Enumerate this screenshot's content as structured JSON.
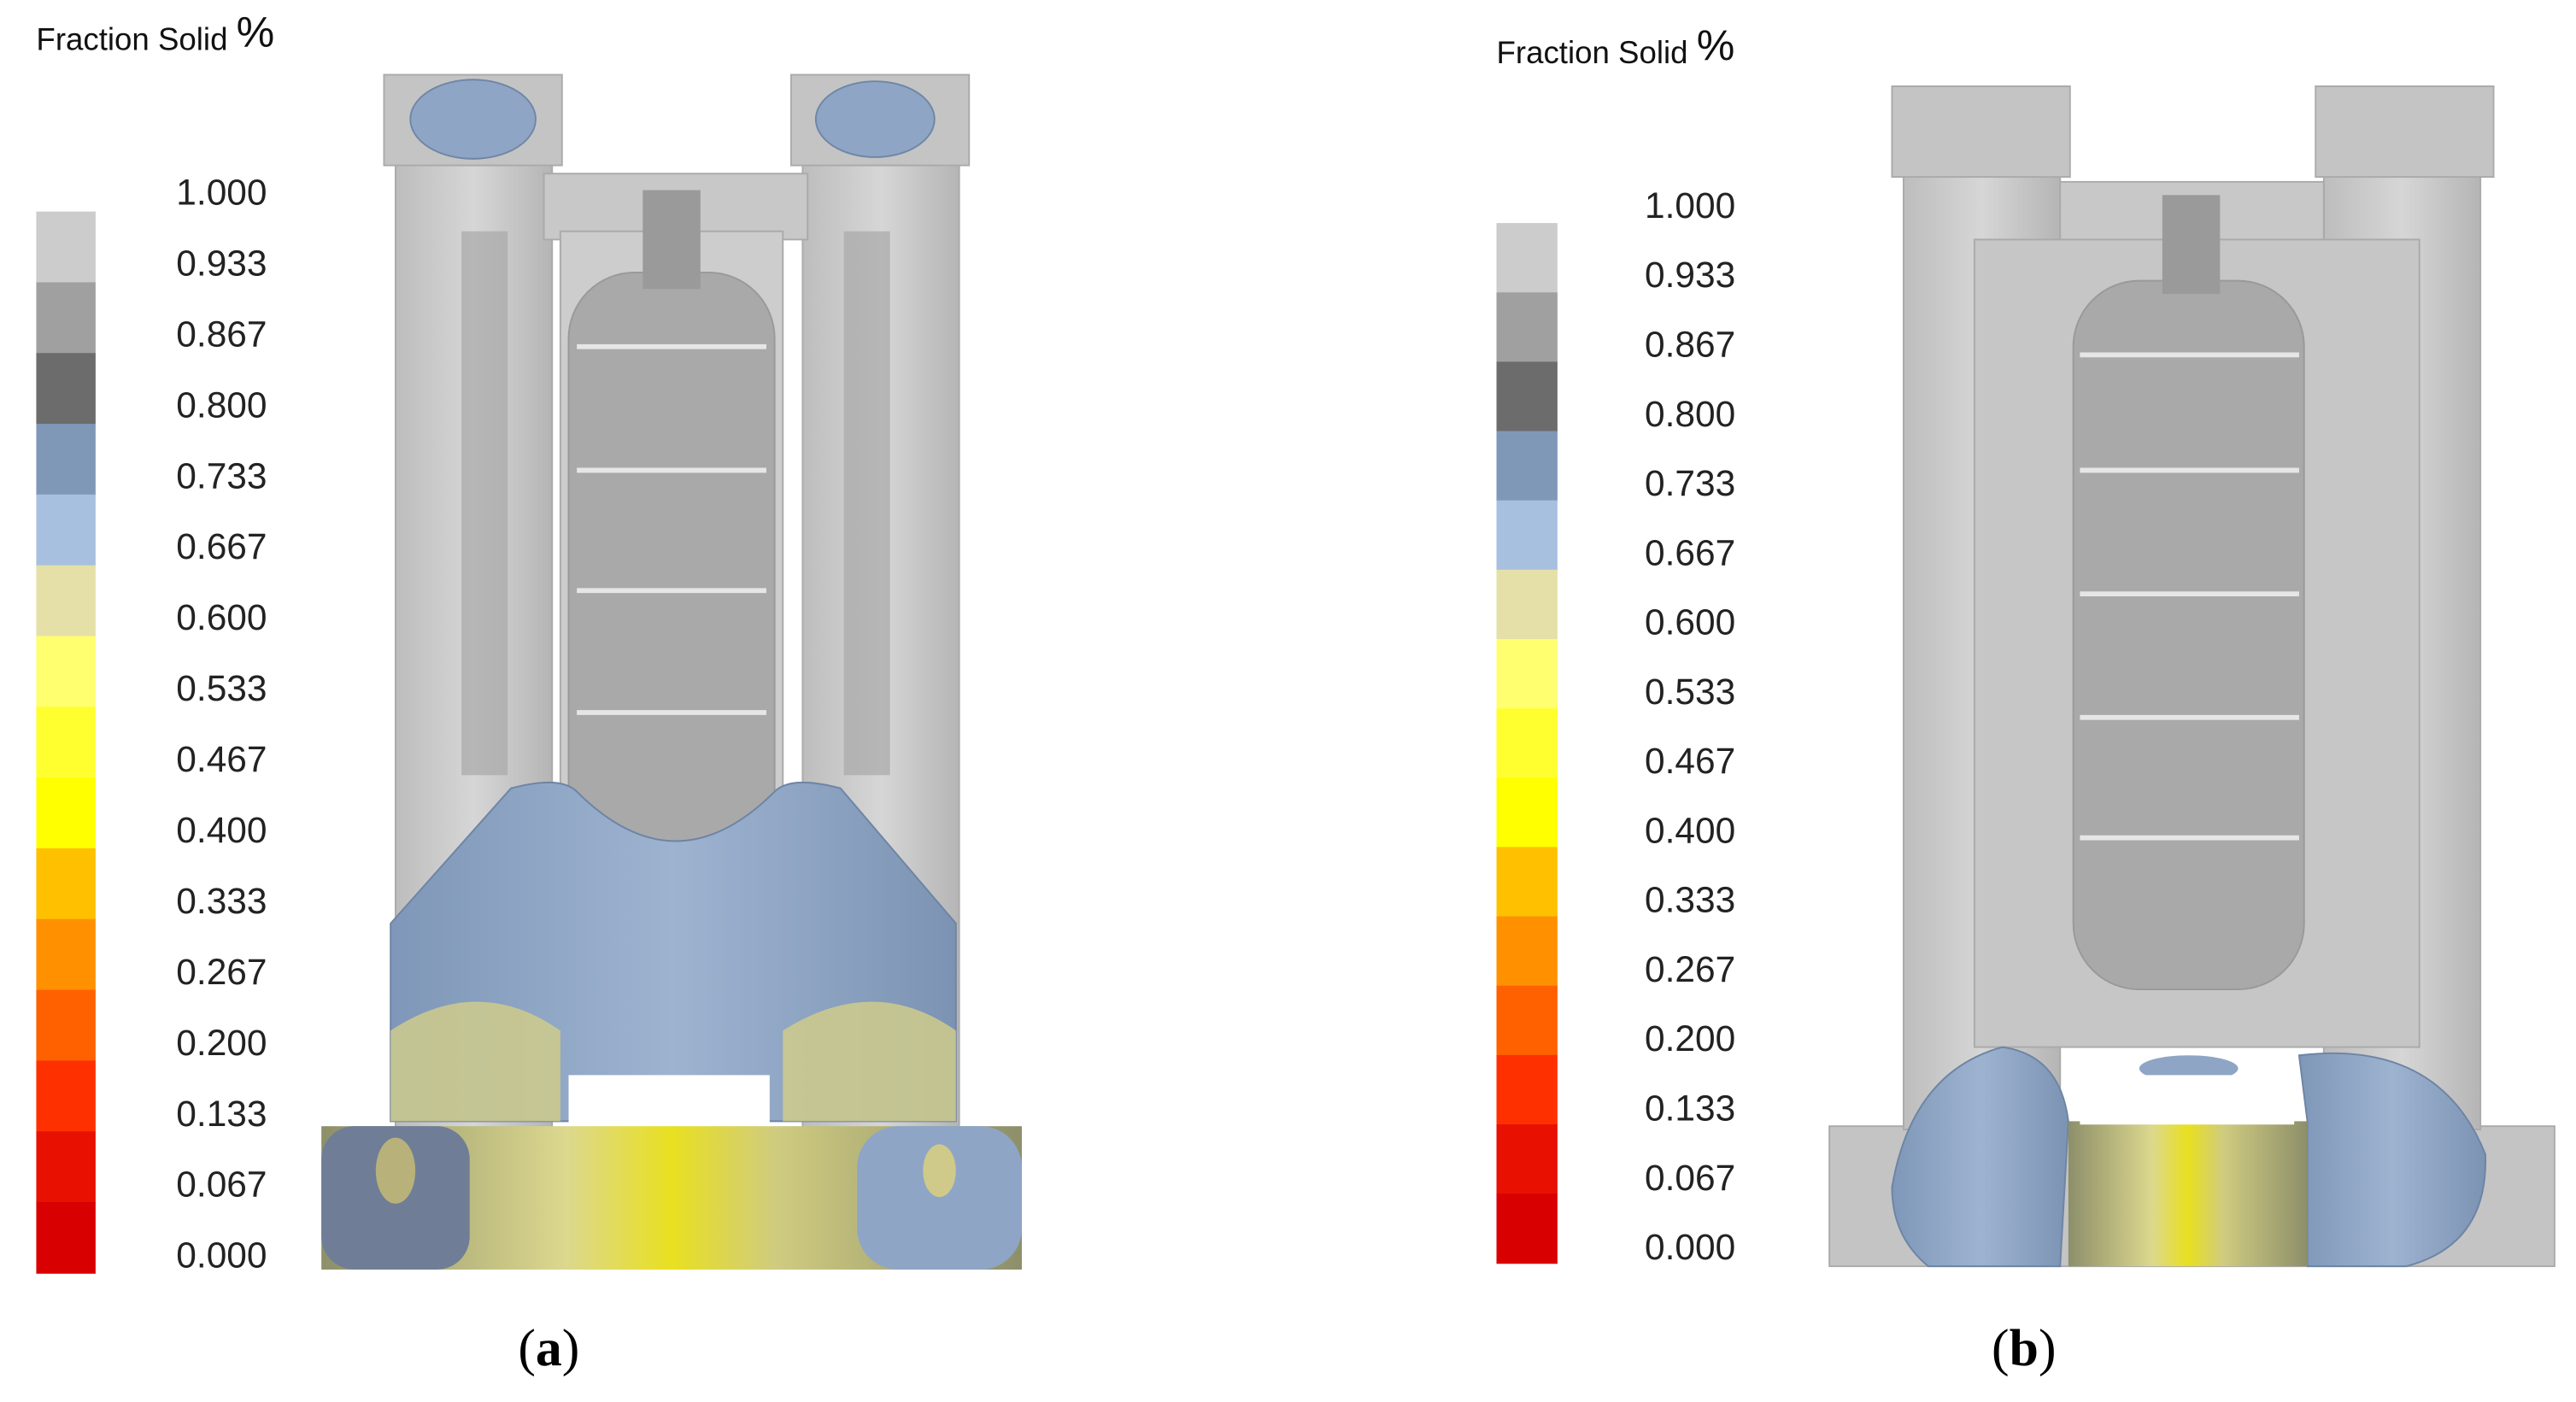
{
  "panels": [
    {
      "legend": {
        "title": "Fraction Solid",
        "unit": "%",
        "labels": [
          "1.000",
          "0.933",
          "0.867",
          "0.800",
          "0.733",
          "0.667",
          "0.600",
          "0.533",
          "0.467",
          "0.400",
          "0.333",
          "0.267",
          "0.200",
          "0.133",
          "0.067",
          "0.000"
        ]
      },
      "caption": {
        "open": "(",
        "letter": "a",
        "close": ")"
      }
    },
    {
      "legend": {
        "title": "Fraction Solid",
        "unit": "%",
        "labels": [
          "1.000",
          "0.933",
          "0.867",
          "0.800",
          "0.733",
          "0.667",
          "0.600",
          "0.533",
          "0.467",
          "0.400",
          "0.333",
          "0.267",
          "0.200",
          "0.133",
          "0.067",
          "0.000"
        ]
      },
      "caption": {
        "open": "(",
        "letter": "b",
        "close": ")"
      }
    }
  ]
}
